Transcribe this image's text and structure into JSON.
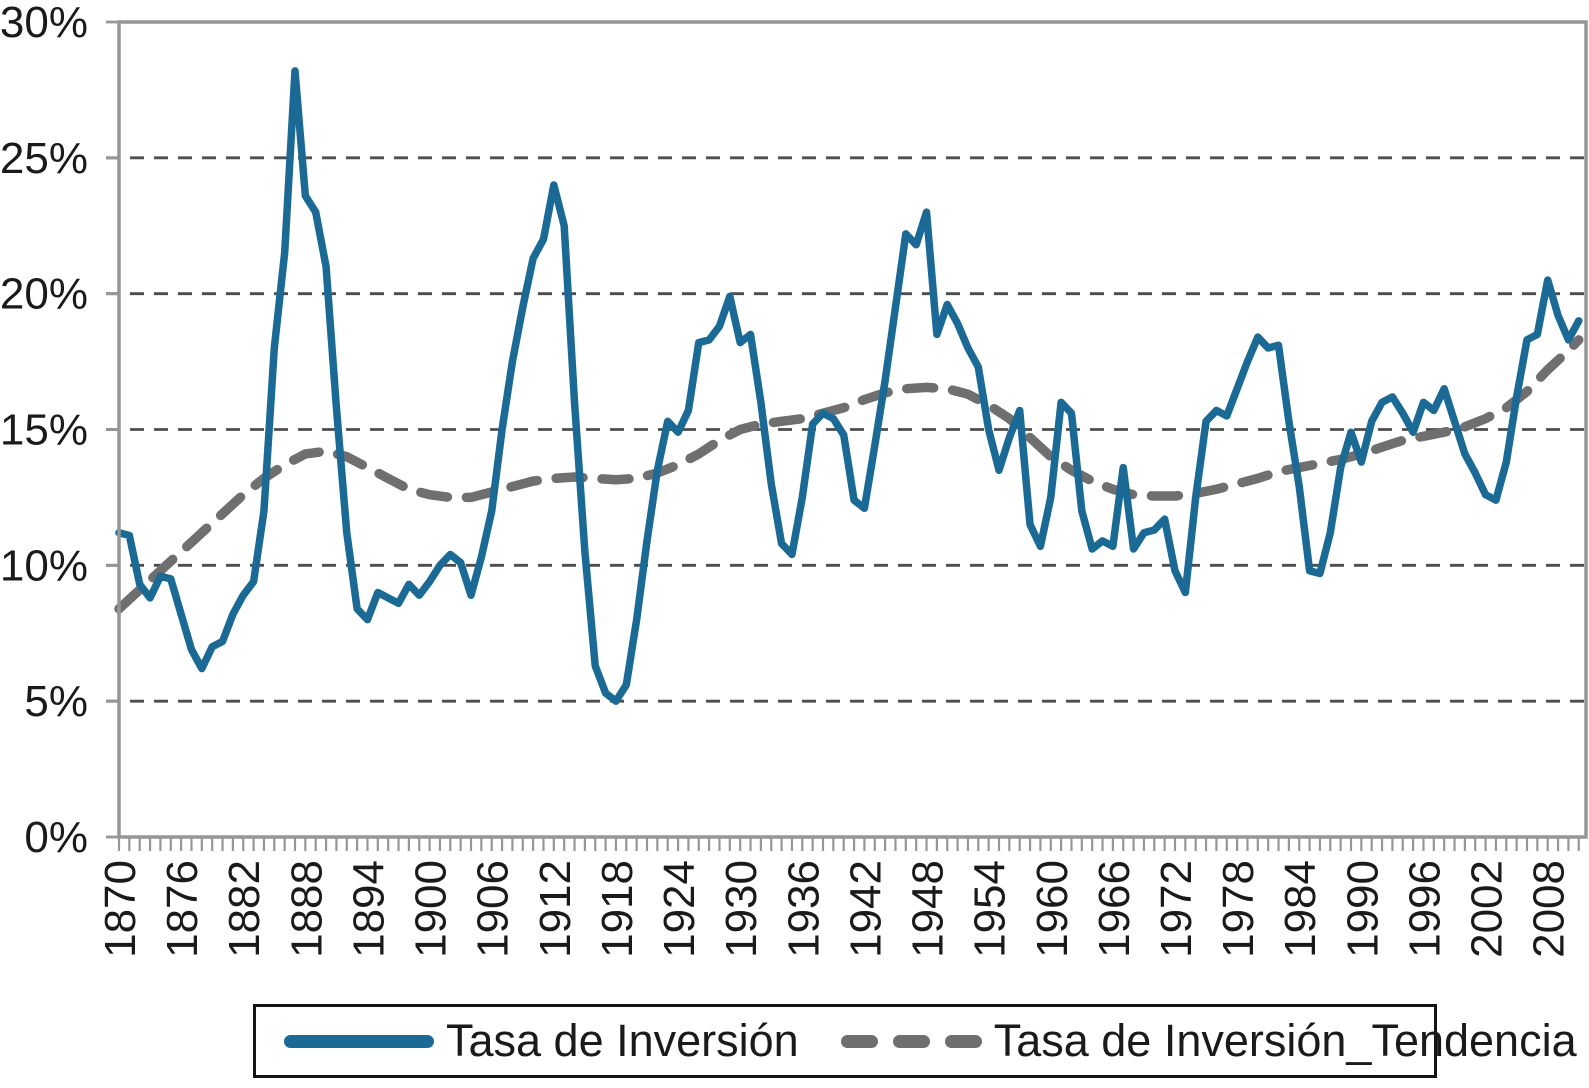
{
  "legend": {
    "series1_label": "Tasa de Inversión",
    "series2_label": "Tasa de Inversión_Tendencia"
  },
  "colors": {
    "series": "#1B6A96",
    "trend": "#6F6F6F",
    "gridline": "#4D4D4D",
    "axis": "#969696",
    "text": "#1A1A1A",
    "background": "#FFFFFF"
  },
  "chart_data": {
    "type": "line",
    "title": "",
    "xlabel": "",
    "ylabel": "",
    "xlim": [
      1870,
      2011.7
    ],
    "ylim": [
      0,
      30
    ],
    "grid": "horizontal dashed every 5%",
    "legend_position": "bottom",
    "y_tick_labels": [
      "0%",
      "5%",
      "10%",
      "15%",
      "20%",
      "25%",
      "30%"
    ],
    "y_tick_values": [
      0,
      5,
      10,
      15,
      20,
      25,
      30
    ],
    "x_tick_label_years": [
      1870,
      1876,
      1882,
      1888,
      1894,
      1900,
      1906,
      1912,
      1918,
      1924,
      1930,
      1936,
      1942,
      1948,
      1954,
      1960,
      1966,
      1972,
      1978,
      1984,
      1990,
      1996,
      2002,
      2008
    ],
    "x_minor_tick_step_years": 1,
    "series": [
      {
        "name": "Tasa de Inversión",
        "style": "solid",
        "color": "#1B6A96",
        "start_year": 1870,
        "values_pct": [
          11.2,
          11.1,
          9.3,
          8.8,
          9.6,
          9.5,
          8.2,
          6.9,
          6.2,
          7.0,
          7.2,
          8.2,
          8.9,
          9.4,
          12.0,
          18.0,
          21.5,
          28.2,
          23.6,
          23.0,
          21.0,
          15.8,
          11.2,
          8.4,
          8.0,
          9.0,
          8.8,
          8.6,
          9.3,
          8.9,
          9.4,
          10.0,
          10.4,
          10.1,
          8.9,
          10.3,
          12.0,
          15.0,
          17.5,
          19.5,
          21.3,
          22.0,
          24.0,
          22.5,
          16.0,
          10.5,
          6.3,
          5.3,
          5.0,
          5.6,
          8.0,
          10.9,
          13.5,
          15.3,
          14.9,
          15.7,
          18.2,
          18.3,
          18.8,
          19.9,
          18.2,
          18.5,
          16.0,
          13.0,
          10.8,
          10.4,
          12.5,
          15.2,
          15.6,
          15.4,
          14.8,
          12.4,
          12.1,
          14.4,
          16.8,
          19.5,
          22.2,
          21.8,
          23.0,
          18.5,
          19.6,
          18.9,
          18.0,
          17.3,
          15.0,
          13.5,
          14.7,
          15.7,
          11.5,
          10.7,
          12.5,
          16.0,
          15.6,
          12.0,
          10.6,
          10.9,
          10.7,
          13.6,
          10.6,
          11.2,
          11.3,
          11.7,
          9.8,
          9.0,
          12.5,
          15.3,
          15.7,
          15.5,
          16.5,
          17.5,
          18.4,
          18.0,
          18.1,
          15.3,
          12.9,
          9.8,
          9.7,
          11.2,
          13.6,
          14.9,
          13.8,
          15.3,
          16.0,
          16.2,
          15.6,
          14.9,
          16.0,
          15.7,
          16.5,
          15.3,
          14.1,
          13.4,
          12.6,
          12.4,
          13.8,
          16.2,
          18.3,
          18.5,
          20.5,
          19.2,
          18.3,
          19.0
        ]
      },
      {
        "name": "Tasa de Inversión_Tendencia",
        "style": "dashed",
        "color": "#6F6F6F",
        "points_year_pct": [
          [
            1870,
            8.4
          ],
          [
            1872,
            9.1
          ],
          [
            1874,
            9.8
          ],
          [
            1876,
            10.5
          ],
          [
            1878,
            11.2
          ],
          [
            1880,
            11.9
          ],
          [
            1882,
            12.6
          ],
          [
            1884,
            13.2
          ],
          [
            1886,
            13.7
          ],
          [
            1888,
            14.1
          ],
          [
            1890,
            14.2
          ],
          [
            1892,
            14.0
          ],
          [
            1894,
            13.6
          ],
          [
            1896,
            13.2
          ],
          [
            1898,
            12.8
          ],
          [
            1900,
            12.6
          ],
          [
            1902,
            12.5
          ],
          [
            1904,
            12.5
          ],
          [
            1906,
            12.7
          ],
          [
            1908,
            12.9
          ],
          [
            1910,
            13.1
          ],
          [
            1912,
            13.2
          ],
          [
            1914,
            13.25
          ],
          [
            1916,
            13.2
          ],
          [
            1918,
            13.15
          ],
          [
            1920,
            13.2
          ],
          [
            1922,
            13.4
          ],
          [
            1924,
            13.7
          ],
          [
            1926,
            14.1
          ],
          [
            1928,
            14.6
          ],
          [
            1930,
            15.0
          ],
          [
            1932,
            15.2
          ],
          [
            1934,
            15.3
          ],
          [
            1936,
            15.4
          ],
          [
            1938,
            15.6
          ],
          [
            1940,
            15.8
          ],
          [
            1942,
            16.1
          ],
          [
            1944,
            16.35
          ],
          [
            1946,
            16.5
          ],
          [
            1948,
            16.55
          ],
          [
            1950,
            16.5
          ],
          [
            1952,
            16.3
          ],
          [
            1954,
            15.9
          ],
          [
            1956,
            15.4
          ],
          [
            1958,
            14.7
          ],
          [
            1960,
            14.0
          ],
          [
            1962,
            13.5
          ],
          [
            1964,
            13.1
          ],
          [
            1966,
            12.8
          ],
          [
            1968,
            12.6
          ],
          [
            1970,
            12.55
          ],
          [
            1972,
            12.55
          ],
          [
            1974,
            12.65
          ],
          [
            1976,
            12.8
          ],
          [
            1978,
            13.0
          ],
          [
            1980,
            13.2
          ],
          [
            1982,
            13.45
          ],
          [
            1984,
            13.6
          ],
          [
            1986,
            13.75
          ],
          [
            1988,
            13.9
          ],
          [
            1990,
            14.1
          ],
          [
            1992,
            14.35
          ],
          [
            1994,
            14.6
          ],
          [
            1996,
            14.75
          ],
          [
            1998,
            14.9
          ],
          [
            2000,
            15.1
          ],
          [
            2002,
            15.4
          ],
          [
            2004,
            15.8
          ],
          [
            2006,
            16.4
          ],
          [
            2008,
            17.2
          ],
          [
            2010,
            17.9
          ],
          [
            2011,
            18.3
          ]
        ]
      }
    ]
  }
}
